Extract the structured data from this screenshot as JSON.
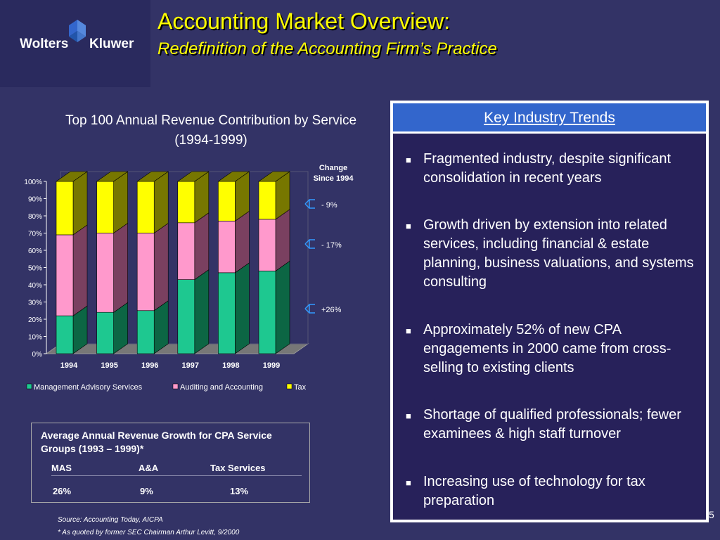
{
  "logo": {
    "left": "Wolters",
    "right": "Kluwer"
  },
  "title": "Accounting Market Overview:",
  "subtitle": "Redefinition of the Accounting Firm’s Practice",
  "chart_data": {
    "type": "bar",
    "stacked": true,
    "three_d": true,
    "title": "Top 100 Annual Revenue Contribution by Service",
    "title_line2": "(1994-1999)",
    "categories": [
      "1994",
      "1995",
      "1996",
      "1997",
      "1998",
      "1999"
    ],
    "y_ticks": [
      "0%",
      "10%",
      "20%",
      "30%",
      "40%",
      "50%",
      "60%",
      "70%",
      "80%",
      "90%",
      "100%"
    ],
    "ylim": [
      0,
      100
    ],
    "series": [
      {
        "name": "Management Advisory Services",
        "color": "#1ec890",
        "side_color": "#0c6644",
        "values": [
          22,
          24,
          25,
          43,
          47,
          48
        ]
      },
      {
        "name": "Auditing and Accounting",
        "color": "#ff99cc",
        "side_color": "#7a4060",
        "values": [
          47,
          46,
          45,
          33,
          30,
          30
        ]
      },
      {
        "name": "Tax",
        "color": "#ffff00",
        "side_color": "#777700",
        "values": [
          31,
          30,
          30,
          24,
          23,
          22
        ]
      }
    ],
    "legend_position": "bottom",
    "change_header_line1": "Change",
    "change_header_line2": "Since 1994",
    "changes": [
      "- 9%",
      "- 17%",
      "+26%"
    ]
  },
  "key_trends": {
    "heading": "Key Industry Trends",
    "bullets": [
      "Fragmented industry, despite significant consolidation in recent years",
      "Growth driven by extension into related services, including financial & estate planning, business valuations, and systems consulting",
      "Approximately 52% of new CPA engagements in 2000 came from cross-selling to existing clients",
      "Shortage of qualified professionals; fewer examinees & high staff turnover",
      "Increasing use of technology for tax preparation"
    ]
  },
  "growth_table": {
    "title": "Average Annual Revenue Growth for CPA Service Groups (1993 – 1999)*",
    "headers": [
      "MAS",
      "A&A",
      "Tax Services"
    ],
    "values": [
      "26%",
      "9%",
      "13%"
    ]
  },
  "source": "Source: Accounting Today, AICPA",
  "footnote": "* As quoted by former SEC Chairman Arthur Levitt, 9/2000",
  "page_number": "5"
}
